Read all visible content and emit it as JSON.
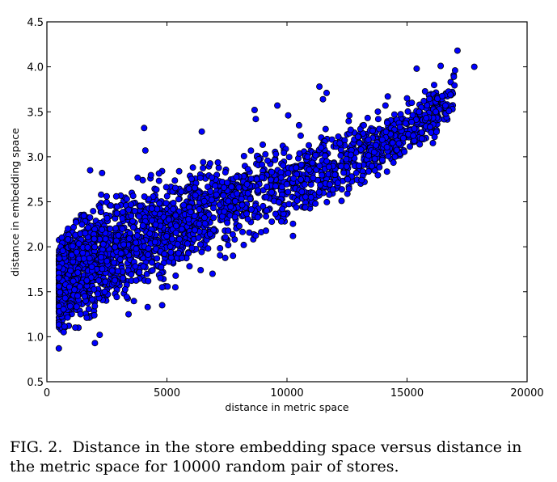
{
  "figure": {
    "caption_label": "FIG. 2.",
    "caption_text": "Distance in the store embedding space versus distance in the metric space for 10000 random pair of stores."
  },
  "chart_data": {
    "type": "scatter",
    "title": "",
    "xlabel": "distance in metric space",
    "ylabel": "distance in embedding space",
    "xlim": [
      0,
      20000
    ],
    "ylim": [
      0.5,
      4.5
    ],
    "xticks": [
      0,
      5000,
      10000,
      15000,
      20000
    ],
    "xtick_labels": [
      "0",
      "5000",
      "10000",
      "15000",
      "20000"
    ],
    "yticks": [
      0.5,
      1.0,
      1.5,
      2.0,
      2.5,
      3.0,
      3.5,
      4.0,
      4.5
    ],
    "ytick_labels": [
      "0.5",
      "1.0",
      "1.5",
      "2.0",
      "2.5",
      "3.0",
      "3.5",
      "4.0",
      "4.5"
    ],
    "grid": false,
    "legend": null,
    "n_points": 10000,
    "marker": {
      "shape": "circle",
      "fill": "#0000ff",
      "edge": "#000000",
      "radius_px": 3.6
    },
    "series": [
      {
        "name": "store pairs",
        "description": "Dense cloud: metric distance ~500-17800, embedding distance ~0.87-4.2; positive, sublinear trend. Core band x 500-8000, y 0.9-3.0.",
        "trend": [
          {
            "x": 500,
            "y_low": 0.9,
            "y_high": 2.2
          },
          {
            "x": 1000,
            "y_low": 0.92,
            "y_high": 2.45
          },
          {
            "x": 2000,
            "y_low": 1.0,
            "y_high": 2.65
          },
          {
            "x": 3000,
            "y_low": 1.15,
            "y_high": 2.8
          },
          {
            "x": 4000,
            "y_low": 1.3,
            "y_high": 2.9
          },
          {
            "x": 5000,
            "y_low": 1.45,
            "y_high": 2.95
          },
          {
            "x": 6000,
            "y_low": 1.6,
            "y_high": 3.05
          },
          {
            "x": 8000,
            "y_low": 1.85,
            "y_high": 3.2
          },
          {
            "x": 10000,
            "y_low": 2.1,
            "y_high": 3.35
          },
          {
            "x": 12000,
            "y_low": 2.4,
            "y_high": 3.45
          },
          {
            "x": 14000,
            "y_low": 2.7,
            "y_high": 3.6
          },
          {
            "x": 16000,
            "y_low": 3.0,
            "y_high": 3.85
          },
          {
            "x": 17800,
            "y_low": 3.7,
            "y_high": 4.2
          }
        ],
        "outliers": [
          [
            4050,
            3.32
          ],
          [
            4100,
            3.07
          ],
          [
            6450,
            3.28
          ],
          [
            8650,
            3.52
          ],
          [
            8700,
            3.42
          ],
          [
            9600,
            3.57
          ],
          [
            10050,
            3.46
          ],
          [
            10500,
            3.35
          ],
          [
            11350,
            3.78
          ],
          [
            11500,
            3.64
          ],
          [
            11650,
            3.71
          ],
          [
            12600,
            3.46
          ],
          [
            14200,
            3.67
          ],
          [
            14100,
            3.57
          ],
          [
            15000,
            3.65
          ],
          [
            15200,
            3.6
          ],
          [
            15500,
            3.5
          ],
          [
            15700,
            3.62
          ],
          [
            16400,
            4.01
          ],
          [
            16950,
            3.89
          ],
          [
            17000,
            3.96
          ],
          [
            17100,
            4.18
          ],
          [
            17800,
            4.0
          ],
          [
            16600,
            3.57
          ],
          [
            16200,
            3.5
          ],
          [
            15800,
            3.43
          ],
          [
            15400,
            3.98
          ],
          [
            14700,
            3.33
          ],
          [
            13800,
            3.42
          ],
          [
            13200,
            3.35
          ],
          [
            12200,
            3.15
          ],
          [
            11000,
            2.55
          ],
          [
            10250,
            2.12
          ],
          [
            9800,
            2.42
          ],
          [
            8200,
            2.02
          ],
          [
            7750,
            1.9
          ],
          [
            6900,
            1.7
          ],
          [
            5350,
            1.55
          ],
          [
            4800,
            1.55
          ],
          [
            4200,
            1.33
          ],
          [
            4800,
            1.35
          ],
          [
            3400,
            1.25
          ],
          [
            2200,
            1.02
          ],
          [
            2000,
            0.93
          ],
          [
            500,
            0.87
          ],
          [
            1800,
            2.85
          ],
          [
            2300,
            2.82
          ],
          [
            12000,
            2.8
          ],
          [
            13000,
            2.9
          ],
          [
            14500,
            3.0
          ]
        ]
      }
    ]
  }
}
